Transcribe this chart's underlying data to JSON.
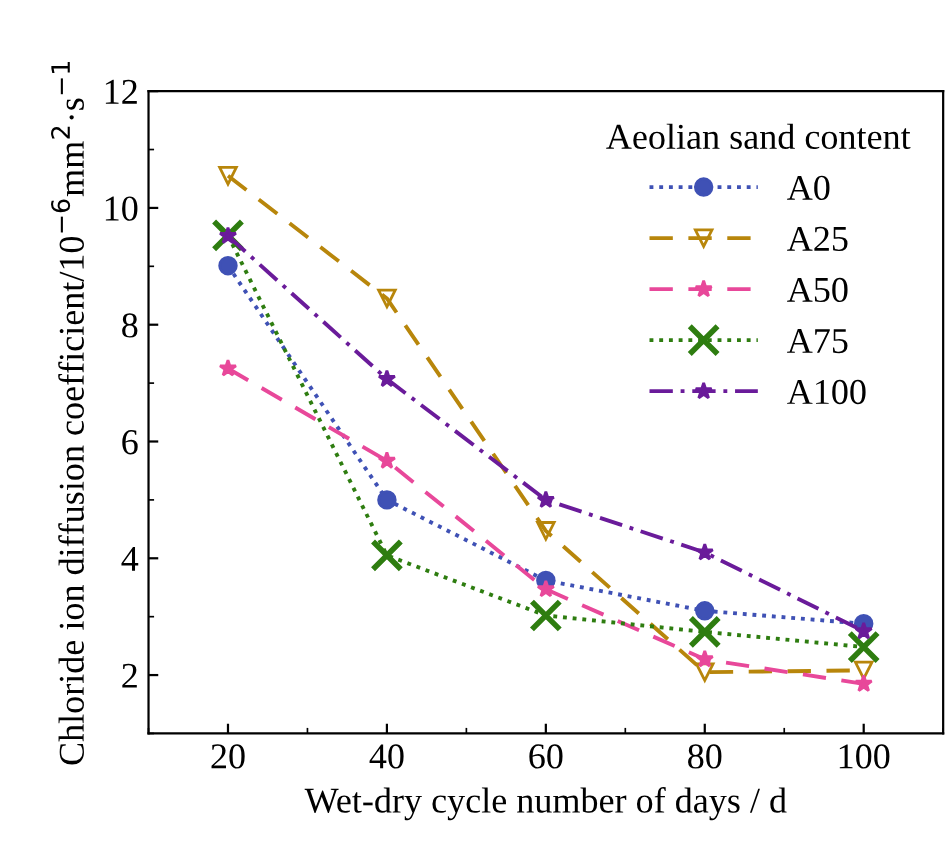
{
  "chart_data": {
    "type": "line",
    "xlabel": "Wet-dry cycle number of days / d",
    "ylabel": "Chloride ion diffusion coefficient/10$^{−6}$mm$^{2}$·s$^{−1}$",
    "legend_title": "Aeolian sand content",
    "legend": "top right",
    "grid": false,
    "x": [
      20,
      40,
      60,
      80,
      100
    ],
    "xlim": [
      10,
      110
    ],
    "xticks": [
      20,
      40,
      60,
      80,
      100
    ],
    "ylim": [
      1,
      12
    ],
    "yticks": [
      2,
      4,
      6,
      8,
      10,
      12
    ],
    "series": [
      {
        "name": "A0",
        "color": "#3f51b5",
        "marker": "circle",
        "line_style": "dotted",
        "values": [
          9.01,
          5.0,
          3.62,
          3.1,
          2.88
        ]
      },
      {
        "name": "A25",
        "color": "#b8860b",
        "marker": "triangle",
        "line_style": "dashed",
        "values": [
          10.55,
          8.45,
          4.47,
          2.05,
          2.08
        ]
      },
      {
        "name": "A50",
        "color": "#e8489a",
        "marker": "star",
        "line_style": "dashed",
        "values": [
          7.25,
          5.67,
          3.47,
          2.27,
          1.85
        ]
      },
      {
        "name": "A75",
        "color": "#2e7d10",
        "marker": "cross",
        "line_style": "dotted",
        "values": [
          9.53,
          4.05,
          3.02,
          2.74,
          2.48
        ]
      },
      {
        "name": "A100",
        "color": "#6a1b9a",
        "marker": "star",
        "line_style": "dashdot",
        "values": [
          9.52,
          7.07,
          5.0,
          4.1,
          2.75
        ]
      }
    ]
  }
}
